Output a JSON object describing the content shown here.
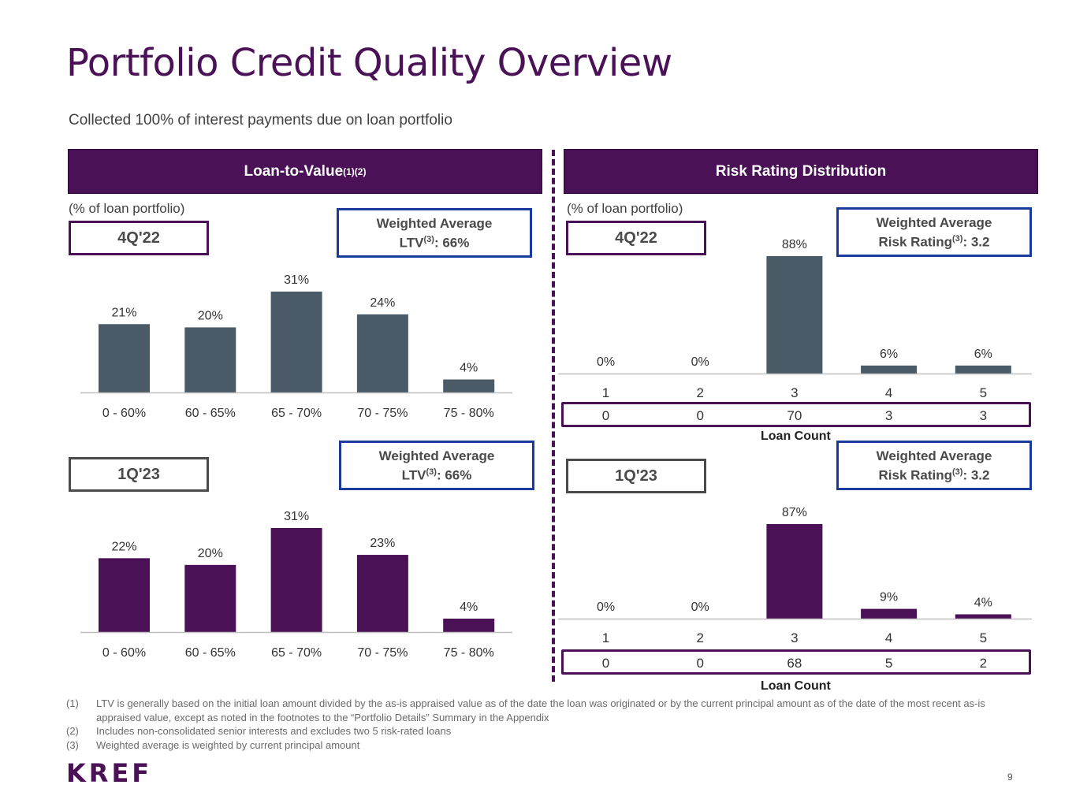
{
  "title": "Portfolio Credit Quality Overview",
  "subtitle": "Collected 100% of interest payments due on loan portfolio",
  "ltv_panel": {
    "header": "Loan-to-Value",
    "header_sup": "(1)(2)",
    "pct_note": "(% of loan portfolio)",
    "q4": {
      "period": "4Q'22",
      "wa_line1": "Weighted Average",
      "wa_line2_pre": "LTV",
      "wa_sup": "(3)",
      "wa_line2_post": ": 66%"
    },
    "q1": {
      "period": "1Q'23",
      "wa_line1": "Weighted Average",
      "wa_line2_pre": "LTV",
      "wa_sup": "(3)",
      "wa_line2_post": ": 66%"
    }
  },
  "risk_panel": {
    "header": "Risk Rating Distribution",
    "pct_note": "(% of loan portfolio)",
    "q4": {
      "period": "4Q'22",
      "wa_line1": "Weighted Average",
      "wa_line2_pre": "Risk Rating",
      "wa_sup": "(3)",
      "wa_line2_post": ": 3.2",
      "count_label": "Loan Count",
      "counts": [
        "0",
        "0",
        "70",
        "3",
        "3"
      ]
    },
    "q1": {
      "period": "1Q'23",
      "wa_line1": "Weighted Average",
      "wa_line2_pre": "Risk Rating",
      "wa_sup": "(3)",
      "wa_line2_post": ": 3.2",
      "count_label": "Loan Count",
      "counts": [
        "0",
        "0",
        "68",
        "5",
        "2"
      ]
    }
  },
  "chart_data": [
    {
      "id": "ltv_4q22",
      "type": "bar",
      "categories": [
        "0 - 60%",
        "60 - 65%",
        "65 - 70%",
        "70 - 75%",
        "75 - 80%"
      ],
      "values": [
        21,
        20,
        31,
        24,
        4
      ],
      "value_labels": [
        "21%",
        "20%",
        "31%",
        "24%",
        "4%"
      ],
      "ylim": [
        0,
        31
      ],
      "color": "#4a5a66"
    },
    {
      "id": "ltv_1q23",
      "type": "bar",
      "categories": [
        "0 - 60%",
        "60 - 65%",
        "65 - 70%",
        "70 - 75%",
        "75 - 80%"
      ],
      "values": [
        22,
        20,
        31,
        23,
        4
      ],
      "value_labels": [
        "22%",
        "20%",
        "31%",
        "23%",
        "4%"
      ],
      "ylim": [
        0,
        31
      ],
      "color": "#4a1157"
    },
    {
      "id": "risk_4q22",
      "type": "bar",
      "categories": [
        "1",
        "2",
        "3",
        "4",
        "5"
      ],
      "values": [
        0,
        0,
        88,
        6,
        6
      ],
      "value_labels": [
        "0%",
        "0%",
        "88%",
        "6%",
        "6%"
      ],
      "ylim": [
        0,
        88
      ],
      "color": "#4a5a66"
    },
    {
      "id": "risk_1q23",
      "type": "bar",
      "categories": [
        "1",
        "2",
        "3",
        "4",
        "5"
      ],
      "values": [
        0,
        0,
        87,
        9,
        4
      ],
      "value_labels": [
        "0%",
        "0%",
        "87%",
        "9%",
        "4%"
      ],
      "ylim": [
        0,
        87
      ],
      "color": "#4a1157"
    }
  ],
  "footnotes": [
    {
      "num": "(1)",
      "text": "LTV is generally based on the initial loan amount divided by the as-is appraised value as of the date the loan was originated or by the current principal amount as of the date of the most recent as-is appraised value, except as noted in the footnotes to the “Portfolio Details” Summary in the Appendix"
    },
    {
      "num": "(2)",
      "text": "Includes non-consolidated senior interests and excludes two 5 risk-rated loans"
    },
    {
      "num": "(3)",
      "text": "Weighted average is weighted by current principal amount"
    }
  ],
  "logo": "KREF",
  "page_number": "9"
}
